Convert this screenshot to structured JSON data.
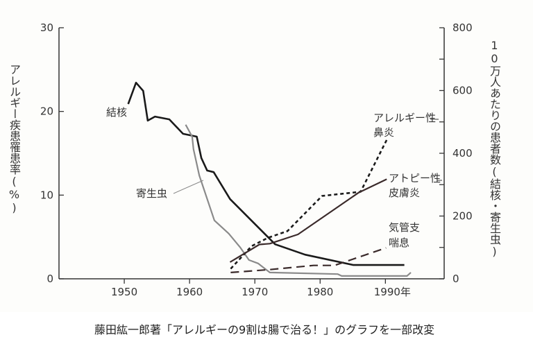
{
  "chart_data": {
    "type": "line",
    "title": "",
    "xlabel": "",
    "ylabel_left": "アレルギー疾患罹患率(%)",
    "ylabel_right": "10万人あたりの患者数(結核・寄生虫)",
    "xlim": [
      1940,
      1999
    ],
    "ylim_left": [
      0,
      30
    ],
    "ylim_right": [
      0,
      800
    ],
    "x_ticks": [
      1950,
      1960,
      1970,
      1980,
      1990
    ],
    "x_tick_labels": [
      "1950",
      "1960",
      "1970",
      "1980",
      "1990年"
    ],
    "y_left_ticks": [
      "0",
      "10",
      "20",
      "30"
    ],
    "y_right_ticks": [
      "0",
      "200",
      "400",
      "600",
      "800"
    ],
    "grid": false,
    "legend": "none (inline labels)",
    "series": [
      {
        "name": "結核",
        "axis": "right",
        "style": "solid-thick",
        "color": "#1a1a1a",
        "x": [
          1950.6,
          1951.8,
          1952.9,
          1953.6,
          1954.7,
          1956.9,
          1959.0,
          1961.1,
          1961.8,
          1962.7,
          1963.7,
          1966.2,
          1973.1,
          1977.7,
          1985.1,
          1992.9
        ],
        "y": [
          557,
          625,
          599,
          504,
          517,
          508,
          462,
          453,
          385,
          345,
          340,
          254,
          110,
          77,
          44,
          44
        ]
      },
      {
        "name": "寄生虫",
        "axis": "right",
        "style": "solid-gray",
        "color": "#8a8a8a",
        "x": [
          1959.4,
          1960.4,
          1960.6,
          1961.5,
          1963.8,
          1966.0,
          1967.8,
          1969.1,
          1970.5,
          1972.3,
          1982.7,
          1983.3,
          1993.3,
          1993.9
        ],
        "y": [
          491,
          453,
          413,
          329,
          186,
          144,
          99,
          60,
          49,
          20,
          15,
          9,
          9,
          20
        ]
      },
      {
        "name": "アレルギー性鼻炎",
        "axis": "left",
        "style": "dotted-dash",
        "color": "#1a1a1a",
        "x": [
          1966.3,
          1969.5,
          1972.0,
          1975.0,
          1980.3,
          1986.2,
          1990.2
        ],
        "y": [
          1.2,
          3.9,
          4.9,
          5.7,
          9.9,
          10.4,
          16.6
        ]
      },
      {
        "name": "アトピー性皮膚炎",
        "axis": "left",
        "style": "solid",
        "color": "#3a2a2a",
        "x": [
          1966.2,
          1970.7,
          1972.3,
          1976.6,
          1985.9,
          1990.2
        ],
        "y": [
          2.0,
          4.1,
          4.2,
          5.3,
          10.3,
          11.9
        ]
      },
      {
        "name": "気管支喘息",
        "axis": "left",
        "style": "long-dash",
        "color": "#3a2a2a",
        "x": [
          1966.3,
          1972.3,
          1979.0,
          1982.2,
          1990.1
        ],
        "y": [
          0.75,
          1.1,
          1.6,
          1.6,
          3.7
        ]
      }
    ],
    "annotations": {
      "tb": "結核",
      "parasite": "寄生虫",
      "rhinitis_1": "アレルギー性",
      "rhinitis_2": "鼻炎",
      "atopic_1": "アトピー性",
      "atopic_2": "皮膚炎",
      "asthma_1": "気管支",
      "asthma_2": "喘息"
    }
  },
  "caption": "藤田紘一郎著「アレルギーの9割は腸で治る！」のグラフを一部改変"
}
